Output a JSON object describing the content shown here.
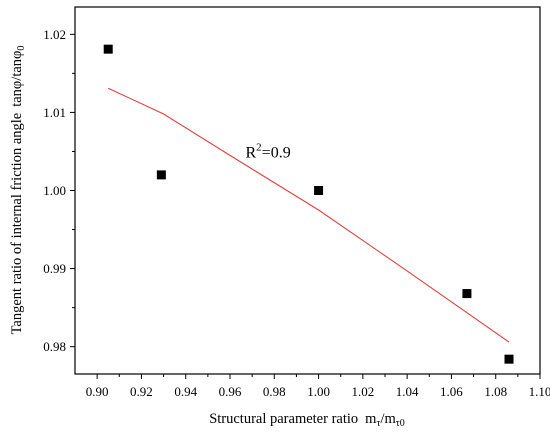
{
  "chart_data": {
    "type": "scatter",
    "title": "",
    "xlabel": "Structural parameter ratio",
    "xlabel_symbol": "m",
    "xlabel_num_sub": "τ",
    "xlabel_sep": "/",
    "xlabel_den_sub": "τ0",
    "ylabel": "Tangent ratio of internal friction angle",
    "ylabel_expr": "tanφ/tanφ",
    "ylabel_sub": "0",
    "xlim": [
      0.89,
      1.1
    ],
    "ylim": [
      0.9765,
      1.0235
    ],
    "x_ticks": [
      0.9,
      0.92,
      0.94,
      0.96,
      0.98,
      1.0,
      1.02,
      1.04,
      1.06,
      1.08,
      1.1
    ],
    "x_tick_labels": [
      "0.90",
      "0.92",
      "0.94",
      "0.96",
      "0.98",
      "1.00",
      "1.02",
      "1.04",
      "1.06",
      "1.08",
      "1.10"
    ],
    "y_ticks": [
      0.98,
      0.99,
      1.0,
      1.01,
      1.02
    ],
    "y_tick_labels": [
      "0.98",
      "0.99",
      "1.00",
      "1.01",
      "1.02"
    ],
    "grid": false,
    "series": [
      {
        "marker": "square",
        "color": "#000000",
        "points": [
          {
            "x": 0.905,
            "y": 1.0181
          },
          {
            "x": 0.929,
            "y": 1.002
          },
          {
            "x": 1.0,
            "y": 1.0
          },
          {
            "x": 1.067,
            "y": 0.9868
          },
          {
            "x": 1.086,
            "y": 0.9784
          }
        ]
      }
    ],
    "fit_line": {
      "color": "#e04040",
      "x": [
        0.905,
        0.93,
        0.96,
        1.0,
        1.04,
        1.086
      ],
      "y": [
        1.0131,
        1.0098,
        1.0045,
        0.9975,
        0.9897,
        0.9806
      ]
    },
    "annotation": {
      "text_base": "R",
      "text_sup": "2",
      "text_rest": "=0.9",
      "x": 0.967,
      "y": 1.0042
    }
  }
}
